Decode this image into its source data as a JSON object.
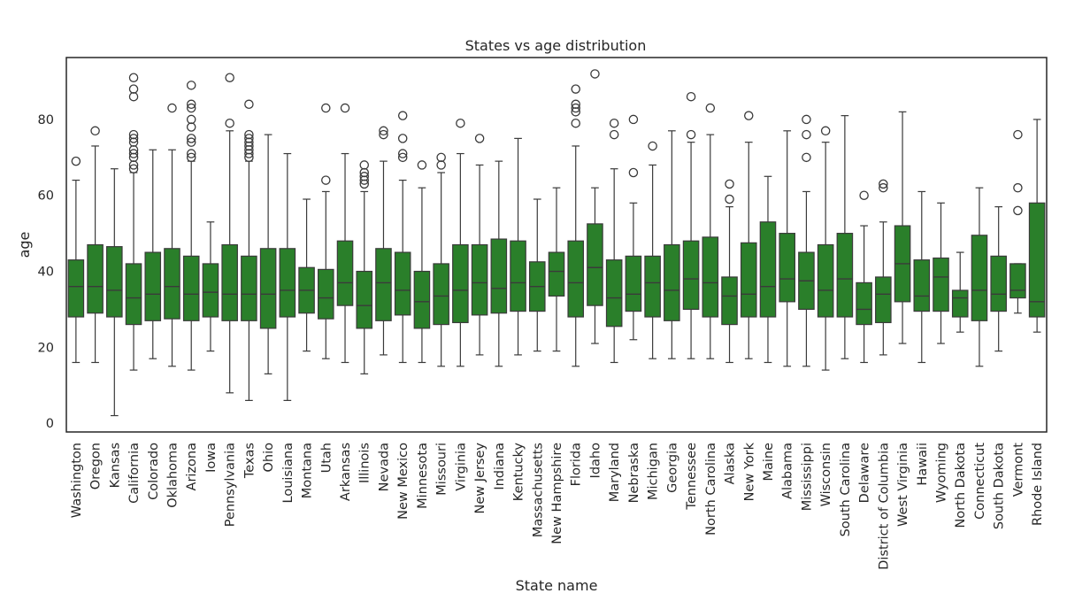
{
  "chart_data": {
    "type": "box",
    "title": "States vs age distribution",
    "xlabel": "State name",
    "ylabel": "age",
    "ylim": [
      -2.3,
      96.3
    ],
    "yticks": [
      0,
      20,
      40,
      60,
      80
    ],
    "grid": false,
    "legend": "none",
    "colors": {
      "box_fill": "#2a7f2a",
      "line": "#3a3a3a",
      "frame": "#262626"
    },
    "categories": [
      "Washington",
      "Oregon",
      "Kansas",
      "California",
      "Colorado",
      "Oklahoma",
      "Arizona",
      "Iowa",
      "Pennsylvania",
      "Texas",
      "Ohio",
      "Louisiana",
      "Montana",
      "Utah",
      "Arkansas",
      "Illinois",
      "Nevada",
      "New Mexico",
      "Minnesota",
      "Missouri",
      "Virginia",
      "New Jersey",
      "Indiana",
      "Kentucky",
      "Massachusetts",
      "New Hampshire",
      "Florida",
      "Idaho",
      "Maryland",
      "Nebraska",
      "Michigan",
      "Georgia",
      "Tennessee",
      "North Carolina",
      "Alaska",
      "New York",
      "Maine",
      "Alabama",
      "Mississippi",
      "Wisconsin",
      "South Carolina",
      "Delaware",
      "District of Columbia",
      "West Virginia",
      "Hawaii",
      "Wyoming",
      "North Dakota",
      "Connecticut",
      "South Dakota",
      "Vermont",
      "Rhode Island"
    ],
    "boxes": [
      {
        "whislo": 16,
        "q1": 28,
        "med": 36,
        "q3": 43,
        "whishi": 64,
        "fliers": [
          69
        ]
      },
      {
        "whislo": 16,
        "q1": 29,
        "med": 36,
        "q3": 47,
        "whishi": 73,
        "fliers": [
          77
        ]
      },
      {
        "whislo": 2,
        "q1": 28,
        "med": 35,
        "q3": 46.5,
        "whishi": 67,
        "fliers": []
      },
      {
        "whislo": 14,
        "q1": 26,
        "med": 33,
        "q3": 42,
        "whishi": 66,
        "fliers": [
          67,
          68,
          70,
          71,
          72,
          74,
          75,
          76,
          86,
          88,
          91
        ]
      },
      {
        "whislo": 17,
        "q1": 27,
        "med": 34,
        "q3": 45,
        "whishi": 72,
        "fliers": []
      },
      {
        "whislo": 15,
        "q1": 27.5,
        "med": 36,
        "q3": 46,
        "whishi": 72,
        "fliers": [
          83
        ]
      },
      {
        "whislo": 14,
        "q1": 27,
        "med": 34,
        "q3": 44,
        "whishi": 69,
        "fliers": [
          70,
          71,
          74,
          75,
          78,
          80,
          83,
          84,
          89
        ]
      },
      {
        "whislo": 19,
        "q1": 28,
        "med": 34.5,
        "q3": 42,
        "whishi": 53,
        "fliers": []
      },
      {
        "whislo": 8,
        "q1": 27,
        "med": 34,
        "q3": 47,
        "whishi": 77,
        "fliers": [
          79,
          91
        ]
      },
      {
        "whislo": 6,
        "q1": 27,
        "med": 34,
        "q3": 44,
        "whishi": 69,
        "fliers": [
          70,
          71,
          72,
          73,
          74,
          75,
          76,
          84
        ]
      },
      {
        "whislo": 13,
        "q1": 25,
        "med": 34,
        "q3": 46,
        "whishi": 76,
        "fliers": []
      },
      {
        "whislo": 6,
        "q1": 28,
        "med": 35,
        "q3": 46,
        "whishi": 71,
        "fliers": []
      },
      {
        "whislo": 19,
        "q1": 29,
        "med": 35,
        "q3": 41,
        "whishi": 59,
        "fliers": []
      },
      {
        "whislo": 17,
        "q1": 27.5,
        "med": 33,
        "q3": 40.5,
        "whishi": 61,
        "fliers": [
          64,
          83
        ]
      },
      {
        "whislo": 16,
        "q1": 31,
        "med": 37,
        "q3": 48,
        "whishi": 71,
        "fliers": [
          83
        ]
      },
      {
        "whislo": 13,
        "q1": 25,
        "med": 31,
        "q3": 40,
        "whishi": 61,
        "fliers": [
          63,
          64,
          65,
          66,
          68
        ]
      },
      {
        "whislo": 18,
        "q1": 27,
        "med": 37,
        "q3": 46,
        "whishi": 69,
        "fliers": [
          76,
          77
        ]
      },
      {
        "whislo": 16,
        "q1": 28.5,
        "med": 35,
        "q3": 45,
        "whishi": 64,
        "fliers": [
          70,
          71,
          75,
          81
        ]
      },
      {
        "whislo": 16,
        "q1": 25,
        "med": 32,
        "q3": 40,
        "whishi": 62,
        "fliers": [
          68
        ]
      },
      {
        "whislo": 15,
        "q1": 26,
        "med": 33.5,
        "q3": 42,
        "whishi": 66,
        "fliers": [
          68,
          70
        ]
      },
      {
        "whislo": 15,
        "q1": 26.5,
        "med": 35,
        "q3": 47,
        "whishi": 71,
        "fliers": [
          79
        ]
      },
      {
        "whislo": 18,
        "q1": 28.5,
        "med": 37,
        "q3": 47,
        "whishi": 68,
        "fliers": [
          75
        ]
      },
      {
        "whislo": 15,
        "q1": 29,
        "med": 35.5,
        "q3": 48.5,
        "whishi": 69,
        "fliers": []
      },
      {
        "whislo": 18,
        "q1": 29.5,
        "med": 37,
        "q3": 48,
        "whishi": 75,
        "fliers": []
      },
      {
        "whislo": 19,
        "q1": 29.5,
        "med": 36,
        "q3": 42.5,
        "whishi": 59,
        "fliers": []
      },
      {
        "whislo": 19,
        "q1": 33.5,
        "med": 40,
        "q3": 45,
        "whishi": 62,
        "fliers": []
      },
      {
        "whislo": 15,
        "q1": 28,
        "med": 37,
        "q3": 48,
        "whishi": 73,
        "fliers": [
          79,
          82,
          83,
          84,
          88
        ]
      },
      {
        "whislo": 21,
        "q1": 31,
        "med": 41,
        "q3": 52.5,
        "whishi": 62,
        "fliers": [
          92
        ]
      },
      {
        "whislo": 16,
        "q1": 25.5,
        "med": 33,
        "q3": 43,
        "whishi": 67,
        "fliers": [
          76,
          79
        ]
      },
      {
        "whislo": 22,
        "q1": 29.5,
        "med": 34,
        "q3": 44,
        "whishi": 58,
        "fliers": [
          66,
          80
        ]
      },
      {
        "whislo": 17,
        "q1": 28,
        "med": 37,
        "q3": 44,
        "whishi": 68,
        "fliers": [
          73
        ]
      },
      {
        "whislo": 17,
        "q1": 27,
        "med": 35,
        "q3": 47,
        "whishi": 77,
        "fliers": []
      },
      {
        "whislo": 17,
        "q1": 30,
        "med": 38,
        "q3": 48,
        "whishi": 74,
        "fliers": [
          76,
          86
        ]
      },
      {
        "whislo": 17,
        "q1": 28,
        "med": 37,
        "q3": 49,
        "whishi": 76,
        "fliers": [
          83
        ]
      },
      {
        "whislo": 16,
        "q1": 26,
        "med": 33.5,
        "q3": 38.5,
        "whishi": 57,
        "fliers": [
          59,
          63
        ]
      },
      {
        "whislo": 17,
        "q1": 28,
        "med": 34,
        "q3": 47.5,
        "whishi": 74,
        "fliers": [
          81
        ]
      },
      {
        "whislo": 16,
        "q1": 28,
        "med": 36,
        "q3": 53,
        "whishi": 65,
        "fliers": []
      },
      {
        "whislo": 15,
        "q1": 32,
        "med": 38,
        "q3": 50,
        "whishi": 77,
        "fliers": []
      },
      {
        "whislo": 15,
        "q1": 30,
        "med": 37.5,
        "q3": 45,
        "whishi": 61,
        "fliers": [
          70,
          76,
          80
        ]
      },
      {
        "whislo": 14,
        "q1": 28,
        "med": 35,
        "q3": 47,
        "whishi": 74,
        "fliers": [
          77
        ]
      },
      {
        "whislo": 17,
        "q1": 28,
        "med": 38,
        "q3": 50,
        "whishi": 81,
        "fliers": []
      },
      {
        "whislo": 16,
        "q1": 26,
        "med": 30,
        "q3": 37,
        "whishi": 52,
        "fliers": [
          60
        ]
      },
      {
        "whislo": 18,
        "q1": 26.5,
        "med": 34,
        "q3": 38.5,
        "whishi": 53,
        "fliers": [
          62,
          63
        ]
      },
      {
        "whislo": 21,
        "q1": 32,
        "med": 42,
        "q3": 52,
        "whishi": 82,
        "fliers": []
      },
      {
        "whislo": 16,
        "q1": 29.5,
        "med": 33.5,
        "q3": 43,
        "whishi": 61,
        "fliers": []
      },
      {
        "whislo": 21,
        "q1": 29.5,
        "med": 38.5,
        "q3": 43.5,
        "whishi": 58,
        "fliers": []
      },
      {
        "whislo": 24,
        "q1": 28,
        "med": 33,
        "q3": 35,
        "whishi": 45,
        "fliers": []
      },
      {
        "whislo": 15,
        "q1": 27,
        "med": 35,
        "q3": 49.5,
        "whishi": 62,
        "fliers": []
      },
      {
        "whislo": 19,
        "q1": 29.5,
        "med": 34,
        "q3": 44,
        "whishi": 57,
        "fliers": []
      },
      {
        "whislo": 29,
        "q1": 33,
        "med": 35,
        "q3": 42,
        "whishi": 42,
        "fliers": [
          56,
          62,
          76
        ]
      },
      {
        "whislo": 24,
        "q1": 28,
        "med": 32,
        "q3": 58,
        "whishi": 80,
        "fliers": []
      }
    ]
  }
}
